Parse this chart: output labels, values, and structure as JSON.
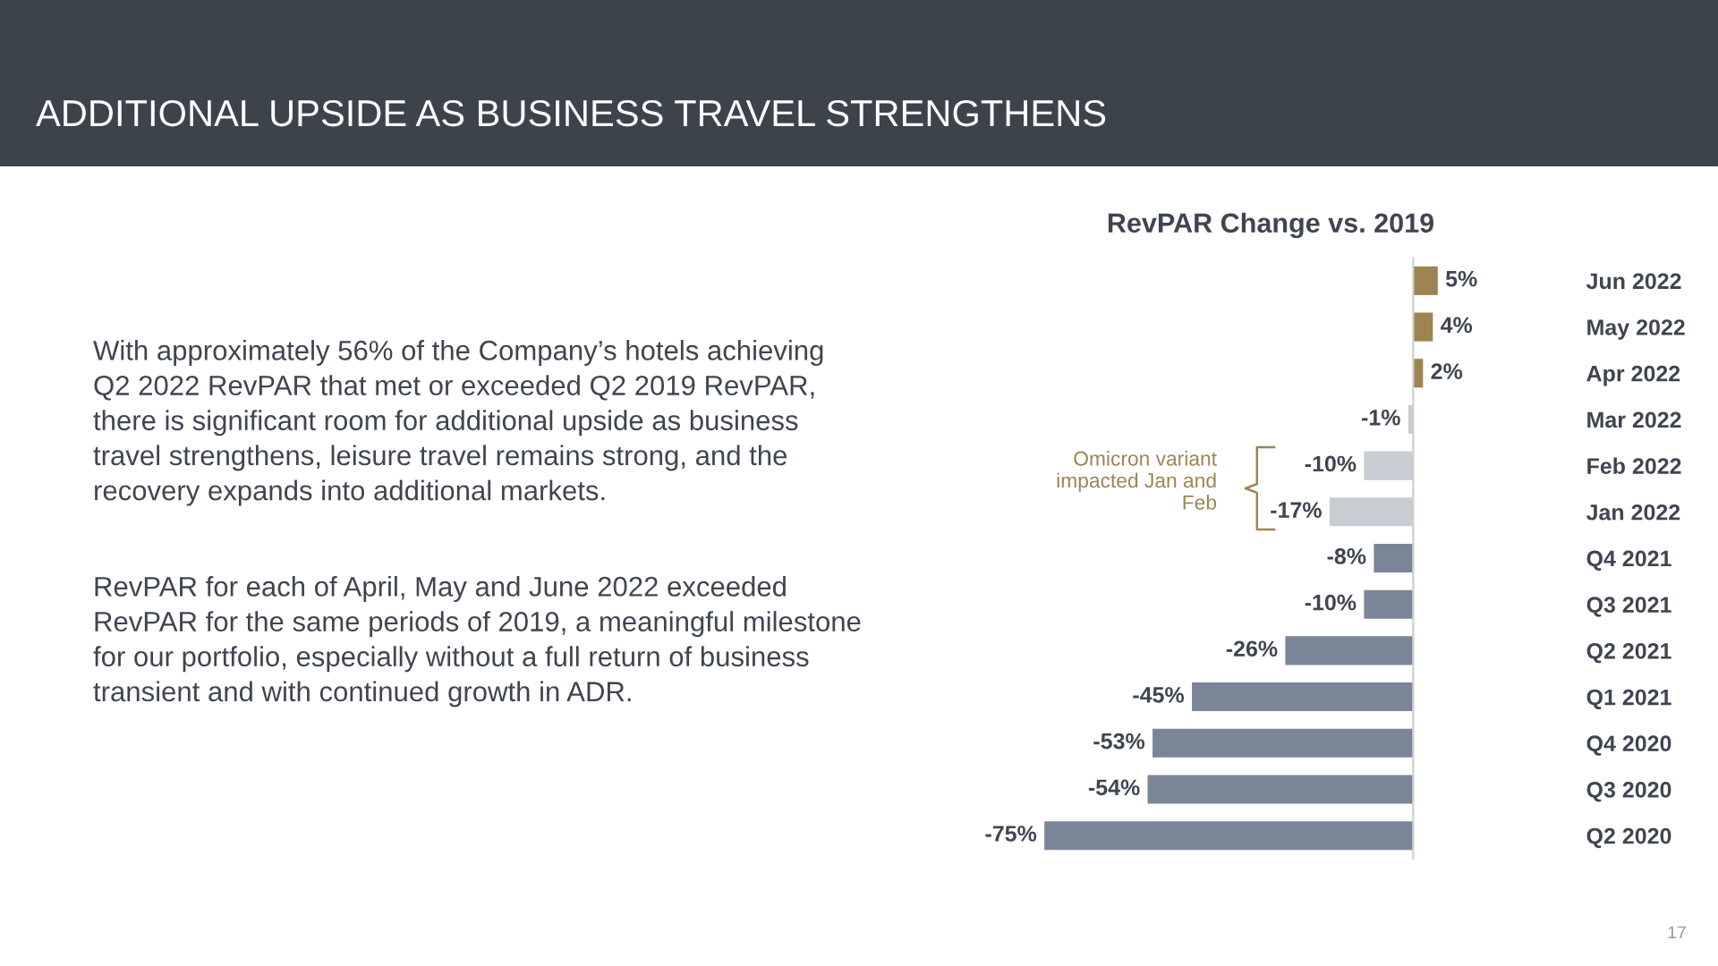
{
  "chart_data": {
    "type": "bar",
    "orientation": "horizontal",
    "title": "ADDITIONAL UPSIDE AS BUSINESS TRAVEL STRENGTHENS",
    "subtitle": "RevPAR Change vs. 2019",
    "categories": [
      "Jun 2022",
      "May 2022",
      "Apr 2022",
      "Mar 2022",
      "Feb 2022",
      "Jan 2022",
      "Q4 2021",
      "Q3 2021",
      "Q2 2021",
      "Q1 2021",
      "Q4 2020",
      "Q3 2020",
      "Q2 2020"
    ],
    "values": [
      5,
      4,
      2,
      -1,
      -10,
      -17,
      -8,
      -10,
      -26,
      -45,
      -53,
      -54,
      -75
    ],
    "value_labels": [
      "5%",
      "4%",
      "2%",
      "-1%",
      "-10%",
      "-17%",
      "-8%",
      "-10%",
      "-26%",
      "-45%",
      "-53%",
      "-54%",
      "-75%"
    ],
    "colors": [
      "#9c8552",
      "#9c8552",
      "#9c8552",
      "#c9cdd3",
      "#c9cdd3",
      "#c9cdd3",
      "#7a8598",
      "#7a8598",
      "#7a8598",
      "#7a8598",
      "#7a8598",
      "#7a8598",
      "#7a8598"
    ],
    "tick_labels": "y",
    "grid": false,
    "annotations": [
      "Omicron variant impacted Jan and Feb",
      "With approximately 56% of the Company’s hotels achieving Q2 2022 RevPAR that met or exceeded Q2 2019 RevPAR, there is significant room for additional upside as business travel strengthens, leisure travel remains strong, and the recovery expands into additional markets.",
      "RevPAR for each of April, May and June 2022 exceeded RevPAR for the same periods of 2019, a meaningful milestone for our portfolio, especially without a full return of business transient and with continued growth in ADR.",
      "17"
    ]
  }
}
